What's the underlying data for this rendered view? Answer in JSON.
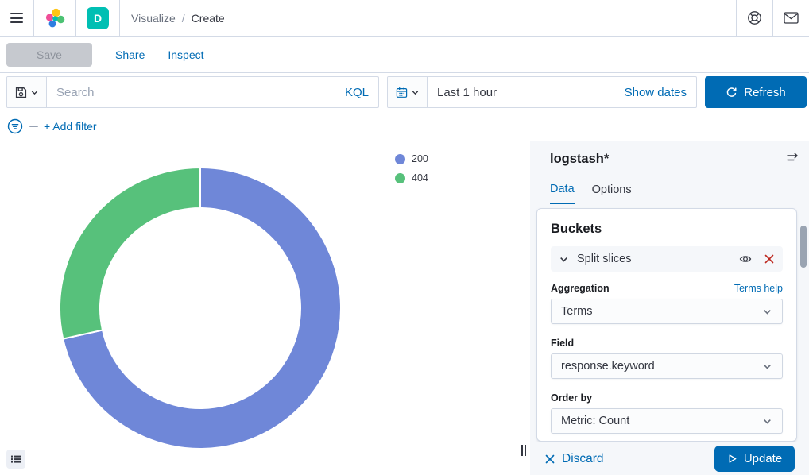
{
  "header": {
    "space_badge": "D",
    "breadcrumbs": {
      "parent": "Visualize",
      "separator": "/",
      "current": "Create"
    }
  },
  "toolbar": {
    "save_label": "Save",
    "share_label": "Share",
    "inspect_label": "Inspect"
  },
  "query_bar": {
    "search_placeholder": "Search",
    "kql_label": "KQL",
    "time_range": "Last 1 hour",
    "show_dates_label": "Show dates",
    "refresh_label": "Refresh"
  },
  "filter_bar": {
    "add_filter_label": "+ Add filter"
  },
  "chart_data": {
    "type": "pie",
    "subtype": "donut",
    "legend_position": "right",
    "slices": [
      {
        "label": "200",
        "value": 71.5,
        "color": "#6F87D8"
      },
      {
        "label": "404",
        "value": 28.5,
        "color": "#57C17B"
      }
    ],
    "value_units": "percent-of-total (estimated from arc angles)",
    "start_angle_deg": 0,
    "direction": "clockwise"
  },
  "editor": {
    "index_pattern": "logstash*",
    "tabs": {
      "data": "Data",
      "options": "Options"
    },
    "buckets": {
      "title": "Buckets",
      "bucket_type": "Split slices",
      "aggregation_label": "Aggregation",
      "aggregation_help": "Terms help",
      "aggregation_value": "Terms",
      "field_label": "Field",
      "field_value": "response.keyword",
      "order_by_label": "Order by",
      "order_by_value": "Metric: Count"
    },
    "footer": {
      "discard_label": "Discard",
      "update_label": "Update"
    }
  },
  "colors": {
    "primary": "#006BB4",
    "danger": "#BD271E",
    "badge": "#00BFB3"
  }
}
